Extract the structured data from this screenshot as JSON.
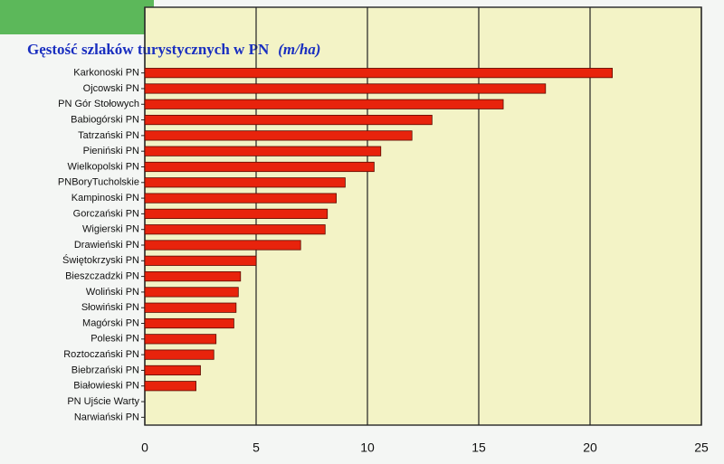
{
  "chart_data": {
    "type": "hbar",
    "title": "Gęstość szlaków turystycznych w PN",
    "unit": "(m/ha)",
    "categories": [
      "Karkonoski PN",
      "Ojcowski PN",
      "PN Gór Stołowych",
      "Babiogórski PN",
      "Tatrzański PN",
      "Pieniński PN",
      "Wielkopolski PN",
      "PNBoryTucholskie",
      "Kampinoski PN",
      "Gorczański PN",
      "Wigierski PN",
      "Drawieński PN",
      "Świętokrzyski PN",
      "Bieszczadzki PN",
      "Woliński PN",
      "Słowiński PN",
      "Magórski PN",
      "Poleski PN",
      "Roztoczański PN",
      "Biebrzański PN",
      "Białowieski PN",
      "PN Ujście Warty",
      "Narwiański PN"
    ],
    "values": [
      21,
      18,
      16.1,
      12.9,
      12,
      10.6,
      10.3,
      9,
      8.6,
      8.2,
      8.1,
      7,
      5,
      4.3,
      4.2,
      4.1,
      4,
      3.2,
      3.1,
      2.5,
      2.3,
      0,
      0
    ],
    "color": "#e8230c",
    "xlim": [
      0,
      25
    ],
    "xticks": [
      0,
      5,
      10,
      15,
      20,
      25
    ],
    "grid": true
  }
}
